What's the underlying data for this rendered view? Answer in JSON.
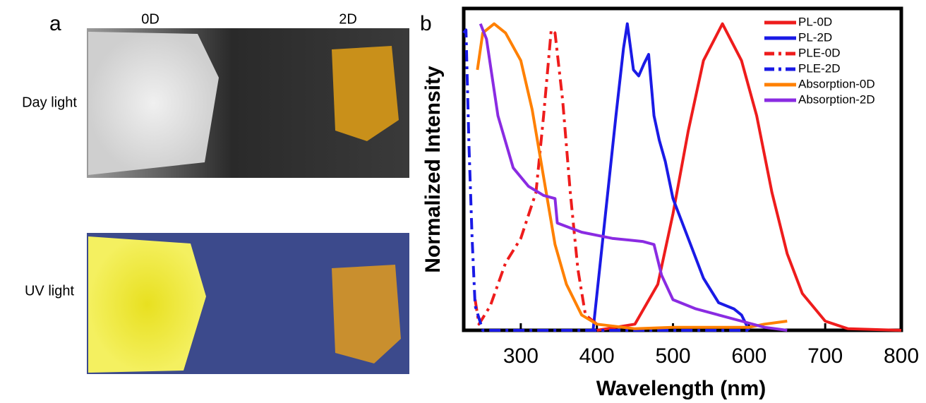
{
  "panel_a": {
    "label": "a",
    "columns": [
      "0D",
      "2D"
    ],
    "rows": [
      "Day light",
      "UV light"
    ]
  },
  "chart_data": {
    "type": "line",
    "panel_label": "b",
    "xlabel": "Wavelength (nm)",
    "ylabel": "Normalized Intensity",
    "xlim": [
      225,
      800
    ],
    "xticks": [
      300,
      400,
      500,
      600,
      700,
      800
    ],
    "ylim": [
      0,
      1.05
    ],
    "legend": "top-right",
    "series": [
      {
        "name": "PL-0D",
        "color": "#ee1c1c",
        "style": "solid",
        "x": [
          400,
          450,
          480,
          500,
          520,
          540,
          565,
          590,
          610,
          630,
          650,
          670,
          700,
          730,
          800
        ],
        "values": [
          0,
          0.02,
          0.15,
          0.38,
          0.65,
          0.88,
          1.0,
          0.88,
          0.7,
          0.45,
          0.25,
          0.12,
          0.03,
          0.005,
          0
        ]
      },
      {
        "name": "PL-2D",
        "color": "#1a1ae6",
        "style": "solid",
        "x": [
          395,
          410,
          425,
          435,
          440,
          448,
          455,
          462,
          468,
          475,
          482,
          490,
          500,
          520,
          540,
          560,
          580,
          590,
          600
        ],
        "values": [
          0,
          0.35,
          0.7,
          0.92,
          1.0,
          0.85,
          0.83,
          0.87,
          0.9,
          0.7,
          0.62,
          0.55,
          0.43,
          0.3,
          0.17,
          0.09,
          0.07,
          0.05,
          0
        ]
      },
      {
        "name": "PLE-0D",
        "color": "#ee1c1c",
        "style": "dashdot",
        "x": [
          240,
          245,
          260,
          280,
          300,
          320,
          330,
          340,
          345,
          355,
          365,
          375,
          385,
          400
        ],
        "values": [
          0.1,
          0.02,
          0.08,
          0.22,
          0.3,
          0.45,
          0.7,
          0.98,
          0.97,
          0.75,
          0.45,
          0.2,
          0.05,
          0.02
        ]
      },
      {
        "name": "PLE-2D",
        "color": "#1a1ae6",
        "style": "dashdot",
        "x": [
          225,
          228,
          232,
          236,
          240,
          250,
          300,
          400,
          600
        ],
        "values": [
          0.97,
          0.98,
          0.6,
          0.3,
          0.08,
          0,
          0,
          0,
          0
        ]
      },
      {
        "name": "Absorption-0D",
        "color": "#ff8000",
        "style": "solid",
        "x": [
          243,
          250,
          265,
          280,
          300,
          315,
          330,
          345,
          360,
          380,
          400,
          450,
          500,
          600,
          620,
          650
        ],
        "values": [
          0.85,
          0.97,
          1.0,
          0.97,
          0.88,
          0.72,
          0.5,
          0.28,
          0.15,
          0.05,
          0.02,
          0.005,
          0.01,
          0.01,
          0.02,
          0.03
        ]
      },
      {
        "name": "Absorption-2D",
        "color": "#8a2be2",
        "style": "solid",
        "x": [
          247,
          255,
          270,
          290,
          310,
          330,
          345,
          348,
          380,
          420,
          460,
          475,
          485,
          500,
          530,
          560,
          590,
          620,
          650
        ],
        "values": [
          1.0,
          0.95,
          0.7,
          0.53,
          0.47,
          0.44,
          0.43,
          0.35,
          0.32,
          0.3,
          0.29,
          0.28,
          0.18,
          0.1,
          0.07,
          0.05,
          0.03,
          0.01,
          0
        ]
      }
    ]
  }
}
